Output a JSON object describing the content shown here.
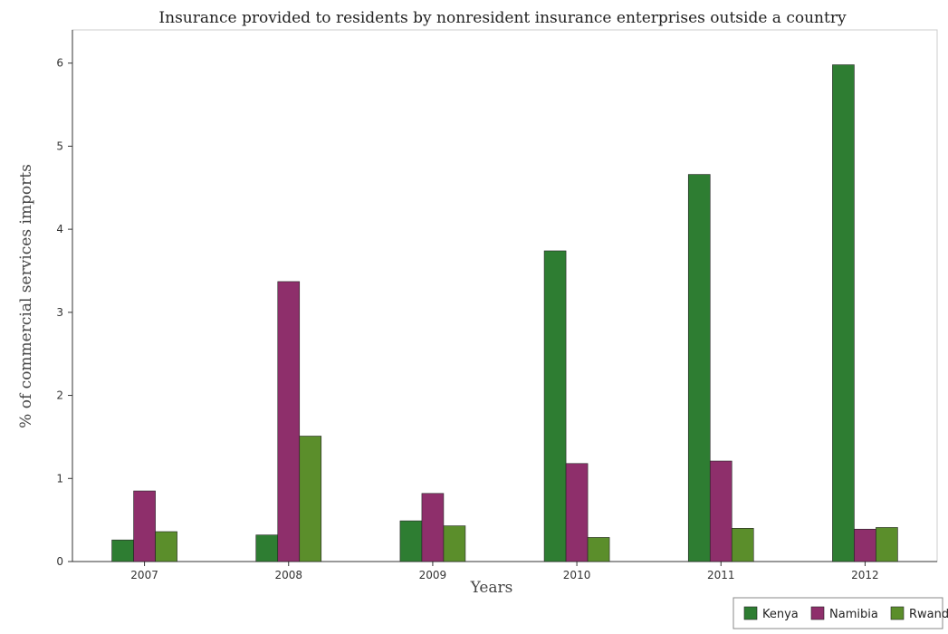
{
  "chart_data": {
    "type": "bar",
    "title": "Insurance provided to residents by nonresident insurance enterprises outside a country",
    "xlabel": "Years",
    "ylabel": "% of commercial services imports",
    "categories": [
      "2007",
      "2008",
      "2009",
      "2010",
      "2011",
      "2012"
    ],
    "ylim": [
      0,
      6.4
    ],
    "yticks": [
      0,
      1,
      2,
      3,
      4,
      5,
      6
    ],
    "grid": false,
    "legend_position": "bottom-right",
    "series": [
      {
        "name": "Kenya",
        "color": "#2e7d32",
        "values": [
          0.26,
          0.32,
          0.49,
          3.74,
          4.66,
          5.98
        ]
      },
      {
        "name": "Namibia",
        "color": "#8e2f6b",
        "values": [
          0.85,
          3.37,
          0.82,
          1.18,
          1.21,
          0.39
        ]
      },
      {
        "name": "Rwanda",
        "color": "#5b8e2b",
        "values": [
          0.36,
          1.51,
          0.43,
          0.29,
          0.4,
          0.41
        ]
      }
    ]
  }
}
